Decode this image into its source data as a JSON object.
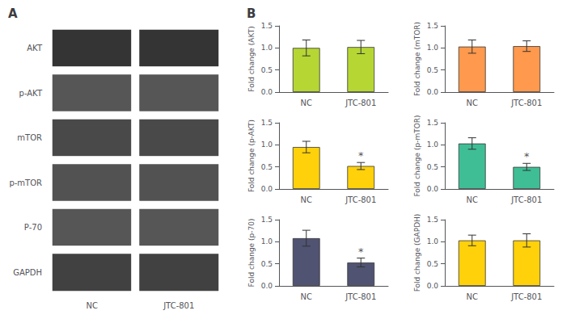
{
  "chart_data": [
    {
      "type": "heatmap",
      "title": "A",
      "categories": [
        "NC",
        "JTC-801"
      ],
      "rows": [
        "AKT",
        "p-AKT",
        "mTOR",
        "p-mTOR",
        "P-70",
        "GAPDH"
      ],
      "cells": [
        [
          0.88,
          0.88
        ],
        [
          0.72,
          0.72
        ],
        [
          0.78,
          0.78
        ],
        [
          0.74,
          0.74
        ],
        [
          0.72,
          0.72
        ],
        [
          0.82,
          0.82
        ]
      ]
    },
    {
      "type": "bar",
      "title": "B",
      "ylabel": "Fold change (AKT)",
      "categories": [
        "NC",
        "JTC-801"
      ],
      "values": [
        1.0,
        1.02
      ],
      "errors": [
        0.18,
        0.15
      ],
      "ylim": [
        0,
        1.5
      ],
      "yticks": [
        {
          "value": 0,
          "label": "0.0"
        },
        0.5,
        {
          "value": 1,
          "label": "1.0"
        },
        1.5
      ],
      "grid": false
    },
    {
      "type": "bar",
      "ylabel": "Fold change (mTOR)",
      "categories": [
        "NC",
        "JTC-801"
      ],
      "values": [
        1.03,
        1.04
      ],
      "errors": [
        0.15,
        0.12
      ],
      "ylim": [
        0,
        1.5
      ],
      "yticks": [
        {
          "value": 0,
          "label": "0.0"
        },
        0.5,
        {
          "value": 1,
          "label": "1.0"
        },
        1.5
      ],
      "grid": false
    },
    {
      "type": "bar",
      "ylabel": "Fold change (p-AKT)",
      "categories": [
        "NC",
        "JTC-801"
      ],
      "values": [
        0.95,
        0.52
      ],
      "errors": [
        0.13,
        0.08
      ],
      "ylim": [
        0,
        1.5
      ],
      "yticks": [
        {
          "value": 0,
          "label": "0.0"
        },
        0.5,
        {
          "value": 1,
          "label": "1.0"
        },
        1.5
      ],
      "grid": false,
      "annotations": [
        {
          "category": "JTC-801",
          "text": "*"
        }
      ]
    },
    {
      "type": "bar",
      "ylabel": "Fold change (p-mTOR)",
      "categories": [
        "NC",
        "JTC-801"
      ],
      "values": [
        1.03,
        0.5
      ],
      "errors": [
        0.13,
        0.08
      ],
      "ylim": [
        0,
        1.5
      ],
      "yticks": [
        {
          "value": 0,
          "label": "0.0"
        },
        0.5,
        {
          "value": 1,
          "label": "1.0"
        },
        1.5
      ],
      "grid": false,
      "annotations": [
        {
          "category": "JTC-801",
          "text": "*"
        }
      ]
    },
    {
      "type": "bar",
      "ylabel": "Fold change (p-70)",
      "categories": [
        "NC",
        "JTC-801"
      ],
      "values": [
        1.08,
        0.53
      ],
      "errors": [
        0.18,
        0.1
      ],
      "ylim": [
        0,
        1.5
      ],
      "yticks": [
        {
          "value": 0,
          "label": "0.0"
        },
        0.5,
        {
          "value": 1,
          "label": "1.0"
        },
        1.5
      ],
      "grid": false,
      "annotations": [
        {
          "category": "JTC-801",
          "text": "*"
        }
      ]
    },
    {
      "type": "bar",
      "ylabel": "Fold change (GAPDH)",
      "categories": [
        "NC",
        "JTC-801"
      ],
      "values": [
        1.03,
        1.03
      ],
      "errors": [
        0.12,
        0.15
      ],
      "ylim": [
        0,
        1.5
      ],
      "yticks": [
        {
          "value": 0,
          "label": "0.0"
        },
        0.5,
        {
          "value": 1,
          "label": "1.0"
        },
        1.5
      ],
      "grid": false
    }
  ]
}
